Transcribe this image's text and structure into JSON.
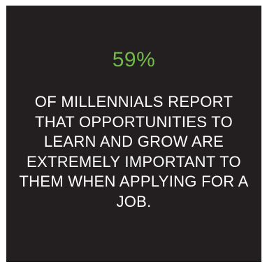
{
  "stat": {
    "value": "59%"
  },
  "caption": {
    "text": "OF MILLENNIALS REPORT THAT OPPORTUNITIES TO LEARN AND GROW ARE EXTREMELY IMPORTANT TO THEM WHEN APPLYING FOR A JOB."
  },
  "colors": {
    "background": "#231f20",
    "accent": "#71b849",
    "text": "#ffffff"
  }
}
